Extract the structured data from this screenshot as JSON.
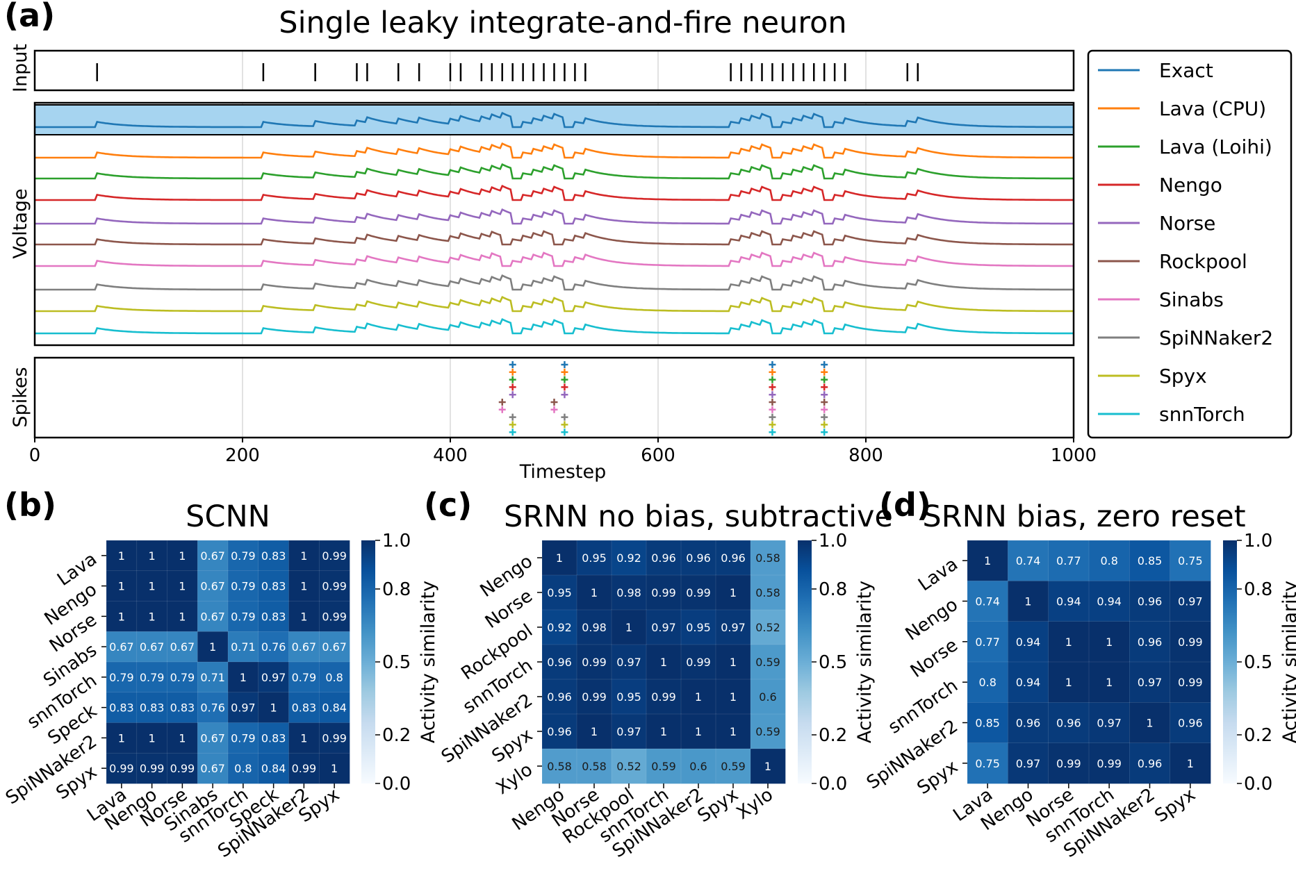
{
  "panel_a": {
    "letter": "(a)",
    "title": "Single leaky integrate-and-fire neuron",
    "labels": {
      "input": "Input",
      "voltage": "Voltage",
      "spikes": "Spikes",
      "xlabel": "Timestep"
    }
  },
  "panel_b": {
    "letter": "(b)"
  },
  "panel_c": {
    "letter": "(c)"
  },
  "panel_d": {
    "letter": "(d)"
  },
  "colors": {
    "Exact": "#1f77b4",
    "Lava (CPU)": "#ff7f0e",
    "Lava (Loihi)": "#2ca02c",
    "Nengo": "#d62728",
    "Norse": "#9467bd",
    "Rockpool": "#8c564b",
    "Sinabs": "#e377c2",
    "SpiNNaker2": "#7f7f7f",
    "Spyx": "#bcbd22",
    "snnTorch": "#17becf",
    "exact_band": "#a6d4f0"
  },
  "chart_data": [
    {
      "type": "line",
      "title": "Single leaky integrate-and-fire neuron",
      "xlabel": "Timestep",
      "xlim": [
        0,
        1000
      ],
      "xticks": [
        0,
        200,
        400,
        600,
        800,
        1000
      ],
      "grid": true,
      "legend_position": "right",
      "series": [
        {
          "name": "Exact"
        },
        {
          "name": "Lava (CPU)"
        },
        {
          "name": "Lava (Loihi)"
        },
        {
          "name": "Nengo"
        },
        {
          "name": "Norse"
        },
        {
          "name": "Rockpool"
        },
        {
          "name": "Sinabs"
        },
        {
          "name": "SpiNNaker2"
        },
        {
          "name": "Spyx"
        },
        {
          "name": "snnTorch"
        }
      ],
      "input_spike_times": [
        60,
        220,
        270,
        310,
        320,
        350,
        370,
        400,
        410,
        430,
        440,
        450,
        460,
        470,
        480,
        490,
        500,
        510,
        520,
        530,
        670,
        680,
        690,
        700,
        710,
        720,
        730,
        740,
        750,
        760,
        770,
        780,
        840,
        850
      ],
      "output_spikes": [
        {
          "series": "Exact",
          "times": [
            460,
            510,
            710,
            760
          ]
        },
        {
          "series": "Lava (CPU)",
          "times": [
            460,
            510,
            710,
            760
          ]
        },
        {
          "series": "Lava (Loihi)",
          "times": [
            460,
            510,
            710,
            760
          ]
        },
        {
          "series": "Nengo",
          "times": [
            460,
            510,
            710,
            760
          ]
        },
        {
          "series": "Norse",
          "times": [
            460,
            510,
            710,
            760
          ]
        },
        {
          "series": "Rockpool",
          "times": [
            450,
            500,
            710,
            760
          ]
        },
        {
          "series": "Sinabs",
          "times": [
            450,
            500,
            710,
            760
          ]
        },
        {
          "series": "SpiNNaker2",
          "times": [
            460,
            510,
            710,
            760
          ]
        },
        {
          "series": "Spyx",
          "times": [
            460,
            510,
            710,
            760
          ]
        },
        {
          "series": "snnTorch",
          "times": [
            460,
            510,
            710,
            760
          ]
        }
      ]
    },
    {
      "type": "heatmap",
      "title": "SCNN",
      "colorbar_label": "Activity similarity",
      "colorbar_ticks": [
        "0.0",
        "0.2",
        "0.5",
        "0.8",
        "1.0"
      ],
      "vlim": [
        0,
        1
      ],
      "labels": [
        "Lava",
        "Nengo",
        "Norse",
        "Sinabs",
        "snnTorch",
        "Speck",
        "SpiNNaker2",
        "Spyx"
      ],
      "values": [
        [
          1,
          1,
          1,
          0.67,
          0.79,
          0.83,
          1,
          0.99
        ],
        [
          1,
          1,
          1,
          0.67,
          0.79,
          0.83,
          1,
          0.99
        ],
        [
          1,
          1,
          1,
          0.67,
          0.79,
          0.83,
          1,
          0.99
        ],
        [
          0.67,
          0.67,
          0.67,
          1,
          0.71,
          0.76,
          0.67,
          0.67
        ],
        [
          0.79,
          0.79,
          0.79,
          0.71,
          1,
          0.97,
          0.79,
          0.8
        ],
        [
          0.83,
          0.83,
          0.83,
          0.76,
          0.97,
          1,
          0.83,
          0.84
        ],
        [
          1,
          1,
          1,
          0.67,
          0.79,
          0.83,
          1,
          0.99
        ],
        [
          0.99,
          0.99,
          0.99,
          0.67,
          0.8,
          0.84,
          0.99,
          1
        ]
      ]
    },
    {
      "type": "heatmap",
      "title": "SRNN no bias, subtractive",
      "colorbar_label": "Activity similarity",
      "colorbar_ticks": [
        "0.0",
        "0.2",
        "0.5",
        "0.8",
        "1.0"
      ],
      "vlim": [
        0,
        1
      ],
      "labels": [
        "Nengo",
        "Norse",
        "Rockpool",
        "snnTorch",
        "SpiNNaker2",
        "Spyx",
        "Xylo"
      ],
      "values": [
        [
          1,
          0.95,
          0.92,
          0.96,
          0.96,
          0.96,
          0.58
        ],
        [
          0.95,
          1,
          0.98,
          0.99,
          0.99,
          1,
          0.58
        ],
        [
          0.92,
          0.98,
          1,
          0.97,
          0.95,
          0.97,
          0.52
        ],
        [
          0.96,
          0.99,
          0.97,
          1,
          0.99,
          1,
          0.59
        ],
        [
          0.96,
          0.99,
          0.95,
          0.99,
          1,
          1,
          0.6
        ],
        [
          0.96,
          1,
          0.97,
          1,
          1,
          1,
          0.59
        ],
        [
          0.58,
          0.58,
          0.52,
          0.59,
          0.6,
          0.59,
          1
        ]
      ]
    },
    {
      "type": "heatmap",
      "title": "SRNN bias, zero reset",
      "colorbar_label": "Activity similarity",
      "colorbar_ticks": [
        "0.0",
        "0.2",
        "0.5",
        "0.8",
        "1.0"
      ],
      "vlim": [
        0,
        1
      ],
      "labels": [
        "Lava",
        "Nengo",
        "Norse",
        "snnTorch",
        "SpiNNaker2",
        "Spyx"
      ],
      "values": [
        [
          1,
          0.74,
          0.77,
          0.8,
          0.85,
          0.75
        ],
        [
          0.74,
          1,
          0.94,
          0.94,
          0.96,
          0.97
        ],
        [
          0.77,
          0.94,
          1,
          1,
          0.96,
          0.99
        ],
        [
          0.8,
          0.94,
          1,
          1,
          0.97,
          0.99
        ],
        [
          0.85,
          0.96,
          0.96,
          0.97,
          1,
          0.96
        ],
        [
          0.75,
          0.97,
          0.99,
          0.99,
          0.96,
          1
        ]
      ]
    }
  ]
}
